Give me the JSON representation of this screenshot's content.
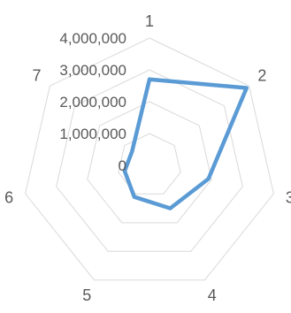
{
  "chart_data": {
    "type": "radar",
    "title": "",
    "categories": [
      "1",
      "2",
      "3",
      "4",
      "5",
      "6",
      "7"
    ],
    "ticks": [
      "0",
      "1,000,000",
      "2,000,000",
      "3,000,000",
      "4,000,000"
    ],
    "rmax": 4000000,
    "grid": true,
    "series": [
      {
        "name": "",
        "color": "#5b9bd5",
        "values": [
          2700000,
          3900000,
          1900000,
          1500000,
          1100000,
          800000,
          700000
        ]
      }
    ]
  }
}
